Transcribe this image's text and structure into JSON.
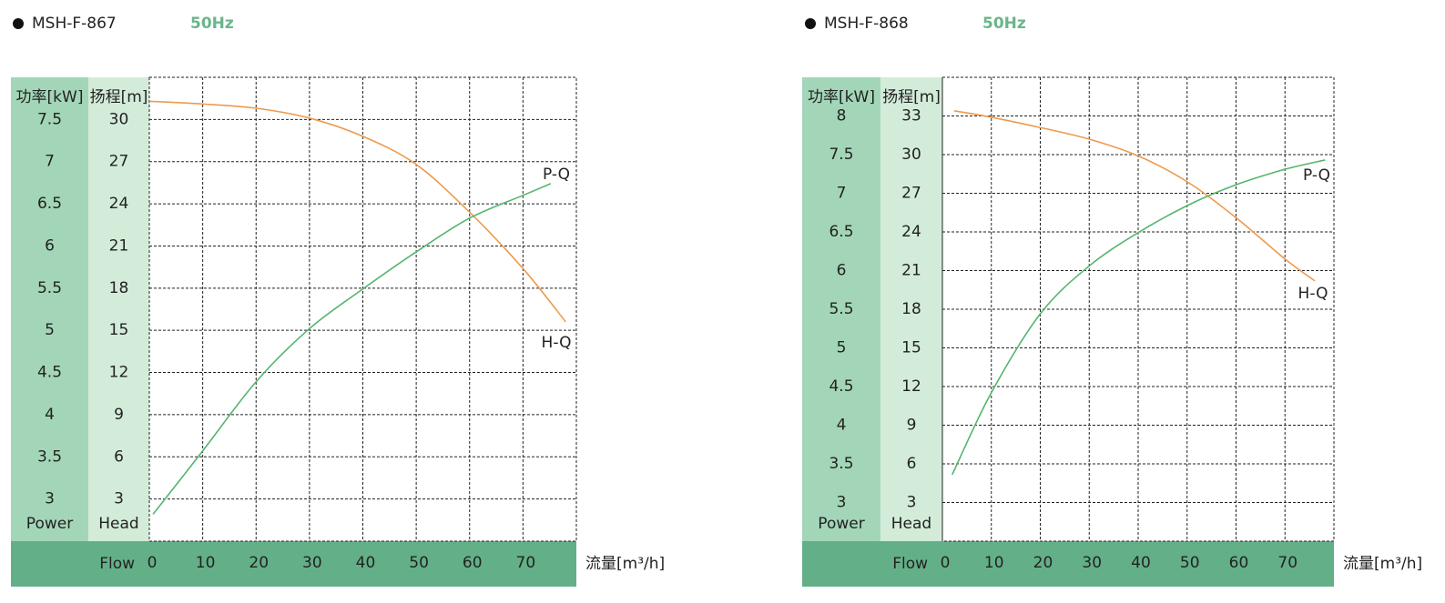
{
  "chart_data": [
    {
      "type": "line",
      "title": "MSH-F-867",
      "subtitle": "50Hz",
      "y2_header": "功率[kW]",
      "y_header": "扬程[m]",
      "y2_name": "Power",
      "y_name": "Head",
      "x_name": "Flow",
      "x_label": "流量[m³/h]",
      "xlim": [
        0,
        80
      ],
      "xticks": [
        0,
        10,
        20,
        30,
        40,
        50,
        60,
        70
      ],
      "ylim": [
        0,
        33
      ],
      "yticks": [
        3,
        6,
        9,
        12,
        15,
        18,
        21,
        24,
        27,
        30
      ],
      "y2lim": [
        2.5,
        8
      ],
      "y2ticks": [
        3,
        3.5,
        4,
        4.5,
        5,
        5.5,
        6,
        6.5,
        7,
        7.5
      ],
      "grid": true,
      "series": [
        {
          "name": "H-Q",
          "color": "#ee9a4d",
          "x": [
            0,
            10,
            20,
            30,
            40,
            50,
            60,
            70,
            78
          ],
          "values": [
            31.3,
            31.1,
            30.8,
            30.1,
            28.8,
            26.8,
            23.4,
            19.4,
            15.6
          ]
        },
        {
          "name": "P-Q",
          "color": "#55b56e",
          "axis": "y2",
          "x": [
            0.7,
            10,
            20,
            30,
            40,
            50,
            60,
            70,
            75.2
          ],
          "values": [
            2.82,
            3.57,
            4.39,
            5.02,
            5.49,
            5.93,
            6.33,
            6.6,
            6.74
          ]
        }
      ]
    },
    {
      "type": "line",
      "title": "MSH-F-868",
      "subtitle": "50Hz",
      "y2_header": "功率[kW]",
      "y_header": "扬程[m]",
      "y2_name": "Power",
      "y_name": "Head",
      "x_name": "Flow",
      "x_label": "流量[m³/h]",
      "xlim": [
        0,
        80
      ],
      "xticks": [
        0,
        10,
        20,
        30,
        40,
        50,
        60,
        70
      ],
      "ylim": [
        0,
        36
      ],
      "yticks": [
        3,
        6,
        9,
        12,
        15,
        18,
        21,
        24,
        27,
        30,
        33
      ],
      "y2lim": [
        2.5,
        8.5
      ],
      "y2ticks": [
        3,
        3.5,
        4,
        4.5,
        5,
        5.5,
        6,
        6.5,
        7,
        7.5,
        8
      ],
      "grid": true,
      "series": [
        {
          "name": "H-Q",
          "color": "#ee9a4d",
          "x": [
            2.4,
            10,
            20,
            30,
            40,
            50,
            60,
            70,
            76.1
          ],
          "values": [
            33.4,
            32.9,
            32.1,
            31.2,
            29.9,
            27.9,
            25.1,
            21.9,
            20.2
          ]
        },
        {
          "name": "P-Q",
          "color": "#55b56e",
          "axis": "y2",
          "x": [
            2,
            10,
            20,
            30,
            40,
            50,
            60,
            70,
            78.2
          ],
          "values": [
            3.36,
            4.42,
            5.44,
            6.06,
            6.49,
            6.84,
            7.11,
            7.31,
            7.43
          ]
        }
      ]
    }
  ]
}
